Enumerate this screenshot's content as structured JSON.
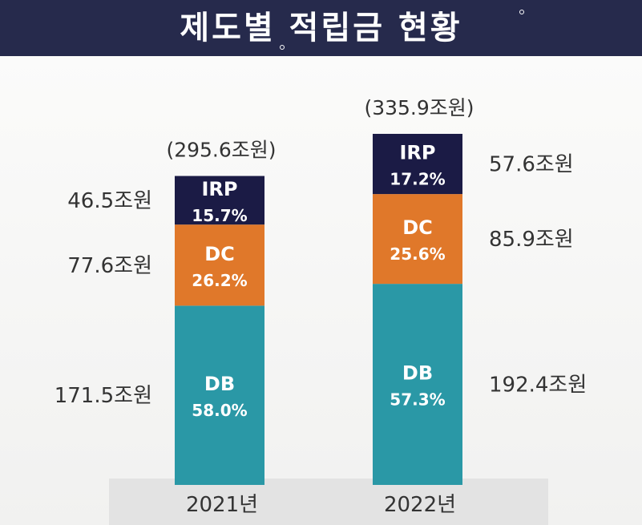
{
  "title": "제도별 적립금 현황",
  "colors": {
    "title_bg": "#262a4c",
    "IRP": "#1b1b45",
    "DC": "#e0782a",
    "DB": "#2a98a6",
    "text": "#333333"
  },
  "chart_data": {
    "type": "bar",
    "stacked": true,
    "categories": [
      "2021년",
      "2022년"
    ],
    "totals": [
      "(295.6조원)",
      "(335.9조원)"
    ],
    "total_values": [
      295.6,
      335.9
    ],
    "series": [
      {
        "name": "DB",
        "values": [
          171.5,
          192.4
        ],
        "value_labels": [
          "171.5조원",
          "192.4조원"
        ],
        "percent_labels": [
          "58.0%",
          "57.3%"
        ]
      },
      {
        "name": "DC",
        "values": [
          77.6,
          85.9
        ],
        "value_labels": [
          "77.6조원",
          "85.9조원"
        ],
        "percent_labels": [
          "26.2%",
          "25.6%"
        ]
      },
      {
        "name": "IRP",
        "values": [
          46.5,
          57.6
        ],
        "value_labels": [
          "46.5조원",
          "57.6조원"
        ],
        "percent_labels": [
          "15.7%",
          "17.2%"
        ]
      }
    ]
  }
}
